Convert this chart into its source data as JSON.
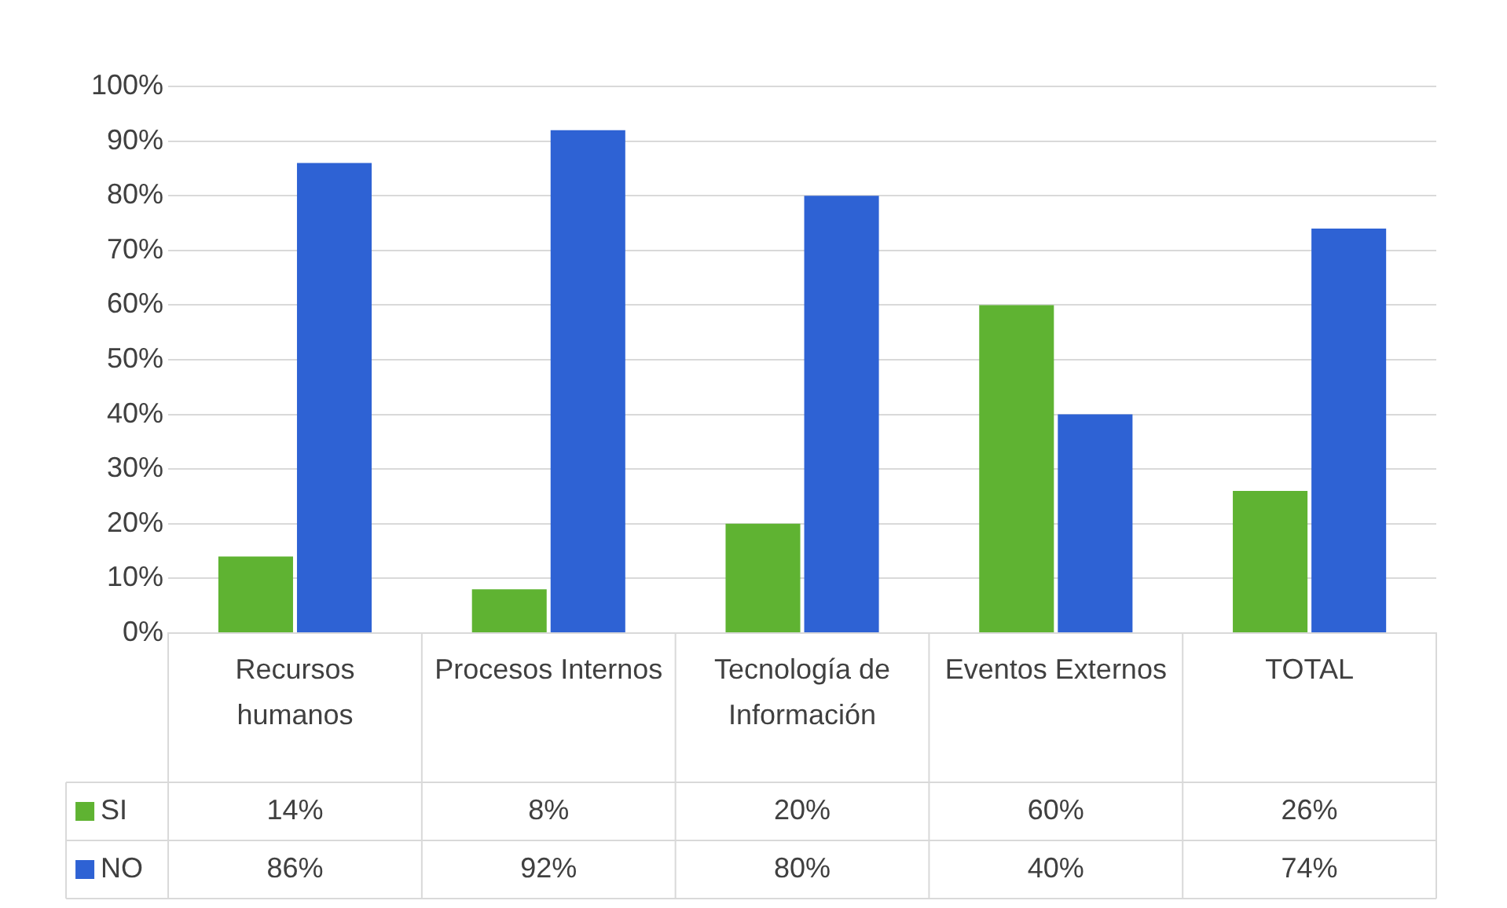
{
  "chart_data": {
    "type": "bar",
    "categories": [
      "Recursos humanos",
      "Procesos Internos",
      "Tecnología de Información",
      "Eventos Externos",
      "TOTAL"
    ],
    "series": [
      {
        "name": "SI",
        "color": "#5fb332",
        "values": [
          14,
          8,
          20,
          60,
          26
        ],
        "value_labels": [
          "14%",
          "8%",
          "20%",
          "60%",
          "26%"
        ]
      },
      {
        "name": "NO",
        "color": "#2e62d4",
        "values": [
          86,
          92,
          80,
          40,
          74
        ],
        "value_labels": [
          "86%",
          "92%",
          "80%",
          "40%",
          "74%"
        ]
      }
    ],
    "ylim": [
      0,
      100
    ],
    "yticks": [
      {
        "value": 0,
        "label": "0%"
      },
      {
        "value": 10,
        "label": "10%"
      },
      {
        "value": 20,
        "label": "20%"
      },
      {
        "value": 30,
        "label": "30%"
      },
      {
        "value": 40,
        "label": "40%"
      },
      {
        "value": 50,
        "label": "50%"
      },
      {
        "value": 60,
        "label": "60%"
      },
      {
        "value": 70,
        "label": "70%"
      },
      {
        "value": 80,
        "label": "80%"
      },
      {
        "value": 90,
        "label": "90%"
      },
      {
        "value": 100,
        "label": "100%"
      }
    ],
    "grid": "y",
    "legend": "bottom"
  }
}
